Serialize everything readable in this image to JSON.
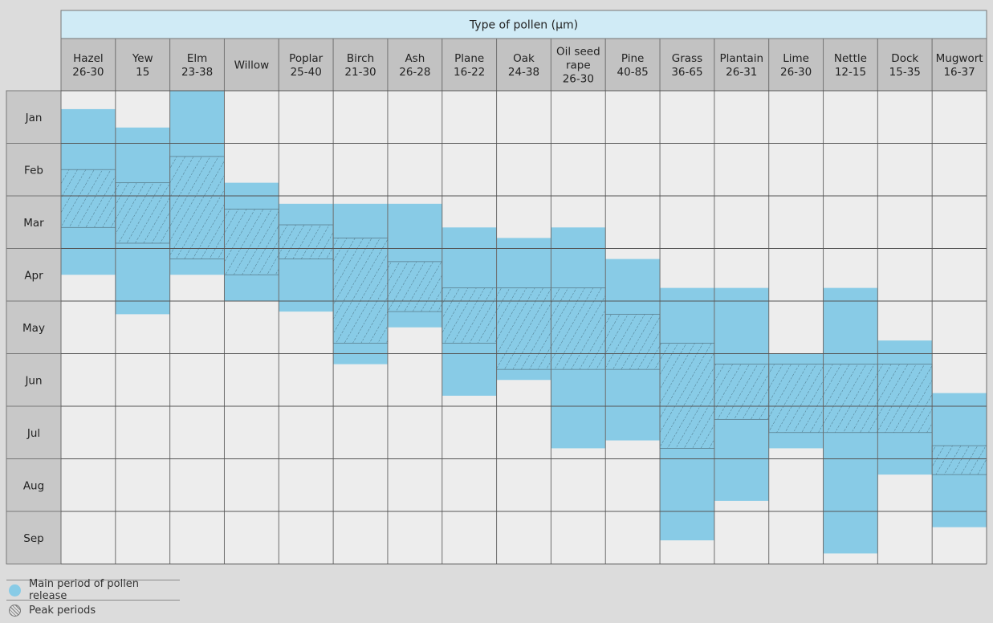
{
  "chart_data": {
    "type": "table",
    "title": "Type of pollen (µm)",
    "months": [
      "Jan",
      "Feb",
      "Mar",
      "Apr",
      "May",
      "Jun",
      "Jul",
      "Aug",
      "Sep"
    ],
    "pollen": [
      {
        "name": "Hazel",
        "size": "26-30",
        "main": [
          0.35,
          3.5
        ],
        "peak": [
          1.5,
          2.6
        ]
      },
      {
        "name": "Yew",
        "size": "15",
        "main": [
          0.7,
          4.25
        ],
        "peak": [
          1.75,
          2.9
        ]
      },
      {
        "name": "Elm",
        "size": "23-38",
        "main": [
          0,
          3.5
        ],
        "peak": [
          1.25,
          3.2
        ]
      },
      {
        "name": "Willow",
        "size": "",
        "main": [
          1.75,
          4
        ],
        "peak": [
          2.25,
          3.5
        ]
      },
      {
        "name": "Poplar",
        "size": "25-40",
        "main": [
          2.15,
          4.2
        ],
        "peak": [
          2.55,
          3.2
        ]
      },
      {
        "name": "Birch",
        "size": "21-30",
        "main": [
          2.15,
          5.2
        ],
        "peak": [
          2.8,
          4.8
        ]
      },
      {
        "name": "Ash",
        "size": "26-28",
        "main": [
          2.15,
          4.5
        ],
        "peak": [
          3.25,
          4.2
        ]
      },
      {
        "name": "Plane",
        "size": "16-22",
        "main": [
          2.6,
          5.8
        ],
        "peak": [
          3.75,
          4.8
        ]
      },
      {
        "name": "Oak",
        "size": "24-38",
        "main": [
          2.8,
          5.5
        ],
        "peak": [
          3.75,
          5.3
        ]
      },
      {
        "name": "Oil seed rape",
        "size": "26-30",
        "main": [
          2.6,
          6.8
        ],
        "peak": [
          3.75,
          5.3
        ]
      },
      {
        "name": "Pine",
        "size": "40-85",
        "main": [
          3.2,
          6.65
        ],
        "peak": [
          4.25,
          5.3
        ]
      },
      {
        "name": "Grass",
        "size": "36-65",
        "main": [
          3.75,
          8.55
        ],
        "peak": [
          4.8,
          6.8
        ]
      },
      {
        "name": "Plantain",
        "size": "26-31",
        "main": [
          3.75,
          7.8
        ],
        "peak": [
          5.2,
          6.25
        ]
      },
      {
        "name": "Lime",
        "size": "26-30",
        "main": [
          5,
          6.8
        ],
        "peak": [
          5.2,
          6.5
        ]
      },
      {
        "name": "Nettle",
        "size": "12-15",
        "main": [
          3.75,
          8.8
        ],
        "peak": [
          5.2,
          6.5
        ]
      },
      {
        "name": "Dock",
        "size": "15-35",
        "main": [
          4.75,
          7.3
        ],
        "peak": [
          5.2,
          6.5
        ]
      },
      {
        "name": "Mugwort",
        "size": "16-37",
        "main": [
          5.75,
          8.3
        ],
        "peak": [
          6.75,
          7.3
        ]
      }
    ],
    "legend": {
      "main_label": "Main period of pollen release",
      "peak_label": "Peak periods",
      "placement": "bottom-left"
    },
    "colors": {
      "main": "#88cbe6",
      "header_band": "#d0ebf6",
      "column_header": "#c2c2c2",
      "cell": "#ededed",
      "row_header": "#c8c8c8",
      "background": "#dcdcdc"
    }
  }
}
